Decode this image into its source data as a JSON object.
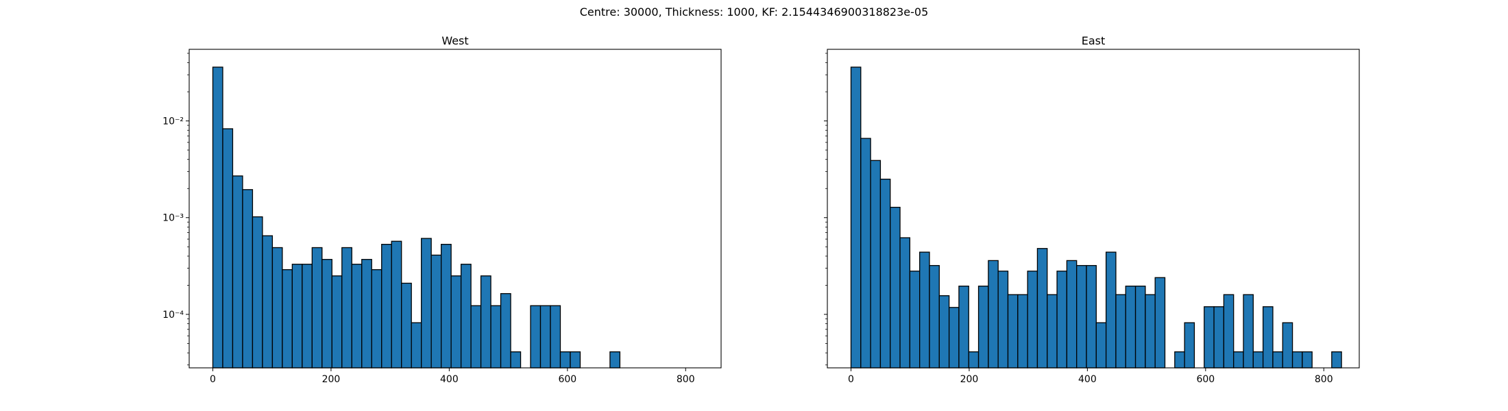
{
  "figure": {
    "suptitle": "Centre: 30000, Thickness: 1000, KF: 2.1544346900318823e-05"
  },
  "chart_data": [
    {
      "type": "bar",
      "title": "West",
      "xlabel": "",
      "ylabel": "",
      "yscale": "log",
      "xlim": [
        -40,
        860
      ],
      "ylim": [
        2.8e-05,
        0.055
      ],
      "xticks": [
        0,
        200,
        400,
        600,
        800
      ],
      "yticks": [
        0.0001,
        0.001,
        0.01
      ],
      "ytick_labels": [
        "10⁻⁴",
        "10⁻³",
        "10⁻²"
      ],
      "bar_color": "#1f77b4",
      "edge_color": "#000000",
      "bin_width": 16.8,
      "bin_starts": [
        0,
        16.8,
        33.6,
        50.4,
        67.2,
        84,
        100.8,
        117.6,
        134.4,
        151.2,
        168,
        184.8,
        201.6,
        218.4,
        235.2,
        252,
        268.8,
        285.6,
        302.4,
        319.2,
        336,
        352.8,
        369.6,
        386.4,
        403.2,
        420,
        436.8,
        453.6,
        470.4,
        487.2,
        504,
        520.8,
        537.6,
        554.4,
        571.2,
        588,
        604.8,
        621.6,
        638.4,
        655.2,
        672
      ],
      "values": [
        0.036,
        0.0083,
        0.0027,
        0.00195,
        0.00102,
        0.00065,
        0.00049,
        0.00029,
        0.00033,
        0.00033,
        0.00049,
        0.00037,
        0.00025,
        0.00049,
        0.00033,
        0.00037,
        0.00029,
        0.00053,
        0.00057,
        0.00021,
        8.2e-05,
        0.00061,
        0.00041,
        0.00053,
        0.00025,
        0.00033,
        0.000123,
        0.00025,
        0.000123,
        0.000164,
        4.1e-05,
        0,
        0.000123,
        0.000123,
        0.000123,
        4.1e-05,
        4.1e-05,
        0,
        0,
        0,
        4.1e-05
      ]
    },
    {
      "type": "bar",
      "title": "East",
      "xlabel": "",
      "ylabel": "",
      "yscale": "log",
      "xlim": [
        -40,
        860
      ],
      "ylim": [
        2.8e-05,
        0.055
      ],
      "xticks": [
        0,
        200,
        400,
        600,
        800
      ],
      "yticks": [
        0.0001,
        0.001,
        0.01
      ],
      "ytick_labels": [
        "",
        "",
        ""
      ],
      "bar_color": "#1f77b4",
      "edge_color": "#000000",
      "bin_width": 16.6,
      "bin_starts": [
        0,
        16.6,
        33.2,
        49.8,
        66.4,
        83,
        99.6,
        116.2,
        132.8,
        149.4,
        166,
        182.6,
        199.2,
        215.8,
        232.4,
        249,
        265.6,
        282.2,
        298.8,
        315.4,
        332,
        348.6,
        365.2,
        381.8,
        398.4,
        415,
        431.6,
        448.2,
        464.8,
        481.4,
        498,
        514.6,
        531.2,
        547.8,
        564.4,
        581,
        597.6,
        614.2,
        630.8,
        647.4,
        664,
        680.6,
        697.2,
        713.8,
        730.4,
        747,
        763.6,
        780.2,
        796.8,
        813.4
      ],
      "values": [
        0.036,
        0.0066,
        0.0039,
        0.0025,
        0.00128,
        0.00062,
        0.00028,
        0.00044,
        0.00032,
        0.000156,
        0.000118,
        0.000196,
        4.1e-05,
        0.000196,
        0.00036,
        0.00028,
        0.00016,
        0.00016,
        0.00028,
        0.00048,
        0.00016,
        0.00028,
        0.00036,
        0.00032,
        0.00032,
        8.2e-05,
        0.00044,
        0.00016,
        0.000196,
        0.000196,
        0.00016,
        0.00024,
        0,
        4.1e-05,
        8.2e-05,
        0,
        0.00012,
        0.00012,
        0.00016,
        4.1e-05,
        0.00016,
        4.1e-05,
        0.00012,
        4.1e-05,
        8.2e-05,
        4.1e-05,
        4.1e-05,
        0,
        0,
        4.1e-05
      ]
    }
  ]
}
